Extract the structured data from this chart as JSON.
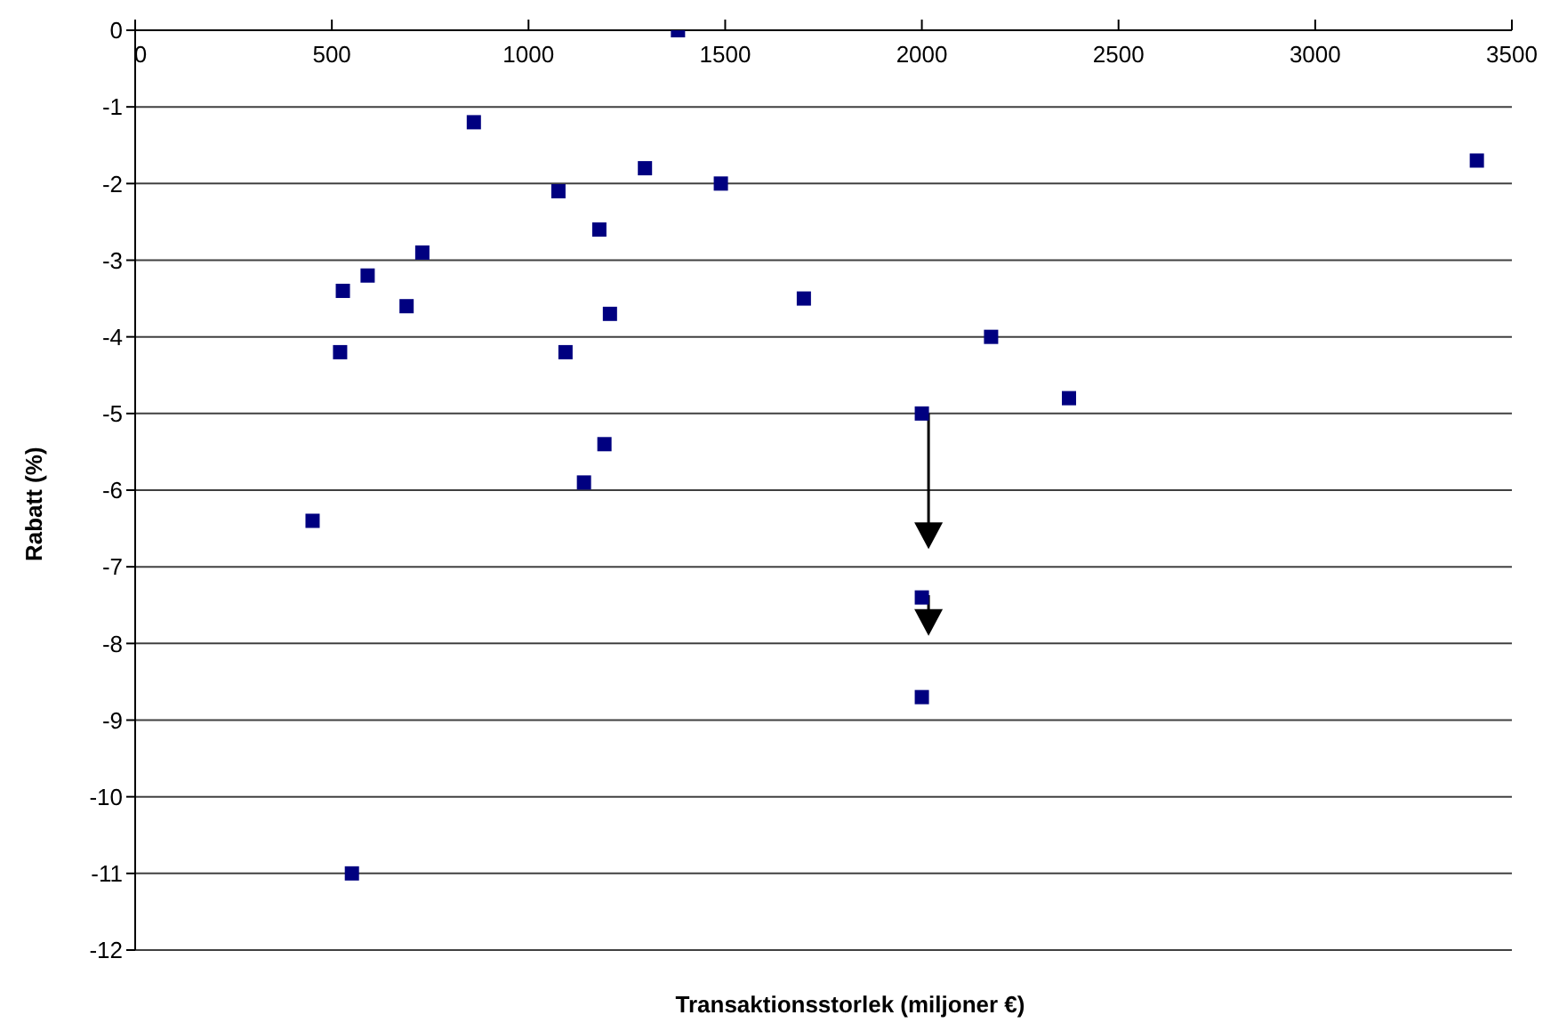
{
  "chart_data": {
    "type": "scatter",
    "xlabel": "Transaktionsstorlek (miljoner €)",
    "ylabel": "Rabatt (%)",
    "x": [
      1380,
      861,
      1076,
      1296,
      1489,
      1180,
      730,
      591,
      528,
      690,
      1207,
      1700,
      521,
      1094,
      1193,
      1141,
      3411,
      2176,
      2374,
      2000,
      451,
      551,
      2000,
      2000
    ],
    "values": [
      0,
      -1.2,
      -2.1,
      -1.8,
      -2.0,
      -2.6,
      -2.9,
      -3.2,
      -3.4,
      -3.6,
      -3.7,
      -3.5,
      -4.2,
      -4.2,
      -5.4,
      -5.9,
      -1.7,
      -4.0,
      -4.8,
      -5.0,
      -6.4,
      -11.0,
      -7.4,
      -8.7
    ],
    "color": "#000080",
    "marker": "square",
    "xlim": [
      0,
      3500
    ],
    "xticks": [
      0,
      500,
      1000,
      1500,
      2000,
      2500,
      3000,
      3500
    ],
    "ylim": [
      -12,
      0
    ],
    "yticks": [
      0,
      -1,
      -2,
      -3,
      -4,
      -5,
      -6,
      -7,
      -8,
      -9,
      -10,
      -11,
      -12
    ],
    "grid": "y"
  }
}
